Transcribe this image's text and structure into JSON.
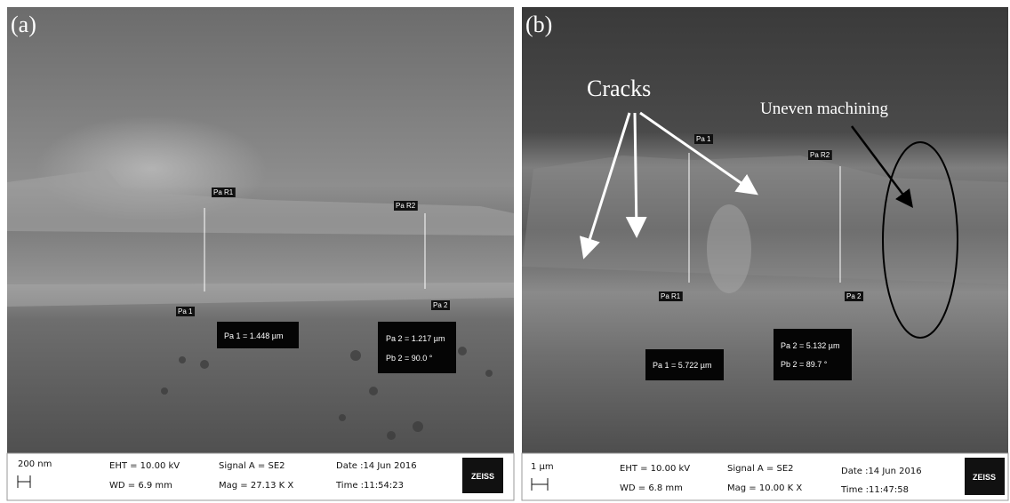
{
  "panels": [
    {
      "label": "(a)",
      "markers": [
        "Pa R1",
        "Pa 1",
        "Pa R2",
        "Pa 2"
      ],
      "boxes": [
        [
          "Pa 1 = 1.448 µm"
        ],
        [
          "Pa 2 = 1.217 µm",
          "Pb 2 = 90.0 °"
        ]
      ],
      "info": {
        "scale": "200 nm",
        "eht": "EHT = 10.00 kV",
        "wd": "WD = 6.9 mm",
        "signal": "Signal A = SE2",
        "mag": "Mag = 27.13 K X",
        "date": "Date :14 Jun 2016",
        "time": "Time :11:54:23",
        "brand": "ZEISS"
      }
    },
    {
      "label": "(b)",
      "markers": [
        "Pa 1",
        "Pa R1",
        "Pa R2",
        "Pa 2"
      ],
      "boxes": [
        [
          "Pa 1 = 5.722 µm"
        ],
        [
          "Pa 2 = 5.132 µm",
          "Pb 2 = 89.7 °"
        ]
      ],
      "info": {
        "scale": "1 µm",
        "eht": "EHT = 10.00 kV",
        "wd": "WD = 6.8 mm",
        "signal": "Signal A = SE2",
        "mag": "Mag = 10.00 K X",
        "date": "Date :14 Jun 2016",
        "time": "Time :11:47:58",
        "brand": "ZEISS"
      }
    }
  ],
  "annotations": {
    "cracks": "Cracks",
    "uneven": "Uneven machining"
  }
}
